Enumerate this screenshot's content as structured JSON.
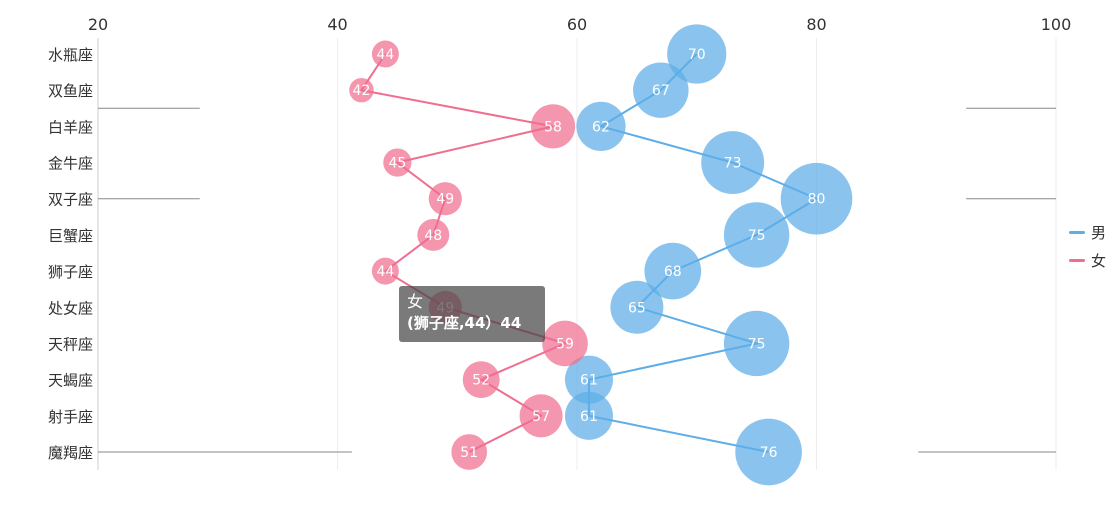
{
  "chart_data": {
    "type": "scatter",
    "xlim": [
      20,
      100
    ],
    "xticks": [
      "20",
      "40",
      "60",
      "80",
      "100"
    ],
    "categories": [
      "水瓶座",
      "双鱼座",
      "白羊座",
      "金牛座",
      "双子座",
      "巨蟹座",
      "狮子座",
      "处女座",
      "天秤座",
      "天蝎座",
      "射手座",
      "魔羯座"
    ],
    "series": [
      {
        "name": "男",
        "color": "#5DADE8",
        "values": [
          70,
          67,
          62,
          73,
          80,
          75,
          68,
          65,
          75,
          61,
          61,
          76
        ]
      },
      {
        "name": "女",
        "color": "#F06E8F",
        "values": [
          44,
          42,
          58,
          45,
          49,
          48,
          44,
          49,
          59,
          52,
          57,
          51
        ]
      }
    ],
    "legend_position": "right"
  },
  "tooltip": {
    "series": "女",
    "text": "(狮子座,44）44"
  }
}
